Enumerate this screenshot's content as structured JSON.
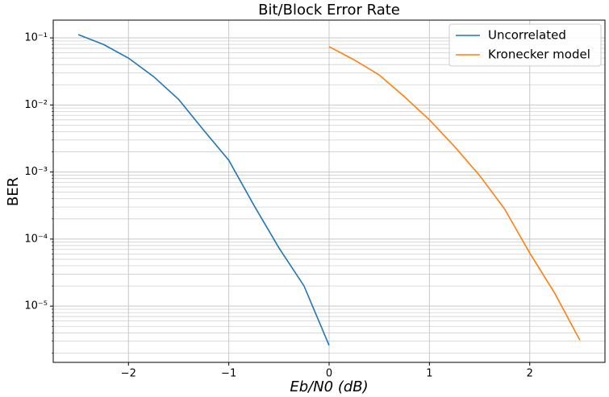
{
  "chart_data": {
    "type": "line",
    "title": "Bit/Block Error Rate",
    "xlabel": "Eb/N0 (dB)",
    "ylabel": "BER",
    "xlim": [
      -2.75,
      2.75
    ],
    "xticks": [
      {
        "value": -2,
        "label": "−2"
      },
      {
        "value": -1,
        "label": "−1"
      },
      0,
      1,
      2
    ],
    "ylim": [
      1.45e-06,
      0.184
    ],
    "yscale": "log",
    "yticks": [
      {
        "value": 0.1,
        "label": "10⁻¹"
      },
      {
        "value": 0.01,
        "label": "10⁻²"
      },
      {
        "value": 0.001,
        "label": "10⁻³"
      },
      {
        "value": 0.0001,
        "label": "10⁻⁴"
      },
      {
        "value": 1e-05,
        "label": "10⁻⁵"
      }
    ],
    "grid": true,
    "minor_grid": true,
    "legend": "upper right",
    "series": [
      {
        "name": "Uncorrelated",
        "color": "#1f77b4",
        "x": [
          -2.5,
          -2.25,
          -2,
          -1.75,
          -1.5,
          -1.25,
          -1,
          -0.75,
          -0.5,
          -0.25,
          0
        ],
        "values": [
          0.112,
          0.08,
          0.05,
          0.0265,
          0.0121,
          0.0042,
          0.0015,
          0.00032,
          7.4e-05,
          2e-05,
          2.6e-06
        ]
      },
      {
        "name": "Kronecker model",
        "color": "#ff7f0e",
        "x": [
          0,
          0.25,
          0.5,
          0.75,
          1,
          1.25,
          1.5,
          1.75,
          2,
          2.25,
          2.5
        ],
        "values": [
          0.074,
          0.047,
          0.028,
          0.0133,
          0.006,
          0.0024,
          0.00089,
          0.00028,
          6.2e-05,
          1.55e-05,
          3.1e-06
        ]
      }
    ]
  }
}
